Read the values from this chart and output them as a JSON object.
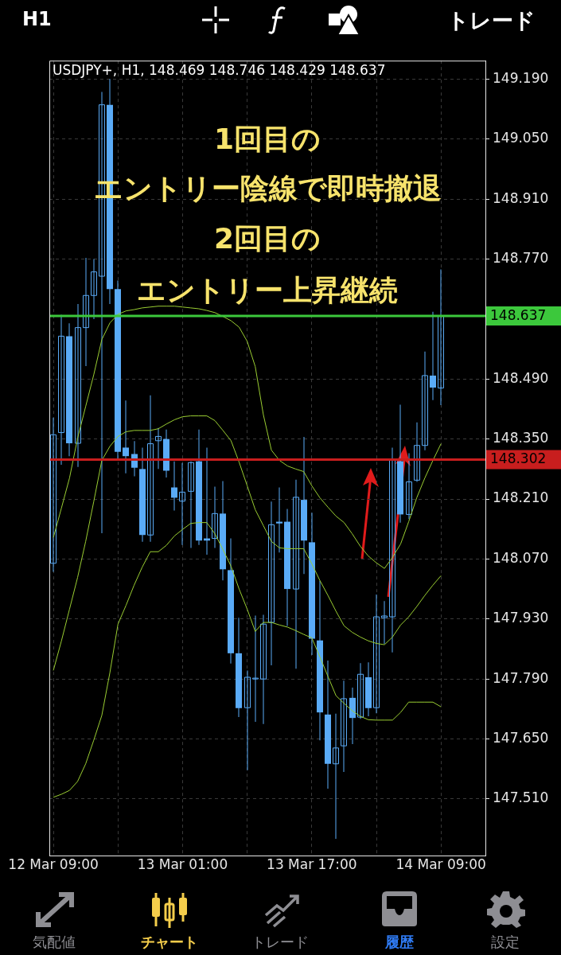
{
  "chart_data": {
    "type": "candlestick",
    "title": "USDJPY+, H1, 148.469 148.746 148.429 148.637",
    "categories": [
      "12 Mar 09:00",
      null,
      null,
      null,
      null,
      null,
      null,
      null,
      null,
      null,
      null,
      null,
      null,
      null,
      null,
      null,
      "13 Mar 01:00",
      null,
      null,
      null,
      null,
      null,
      null,
      null,
      null,
      null,
      null,
      null,
      null,
      null,
      null,
      null,
      "13 Mar 17:00",
      null,
      null,
      null,
      null,
      null,
      null,
      null,
      null,
      null,
      null,
      null,
      null,
      null,
      null,
      null,
      "14 Mar 09:00",
      null,
      null,
      null,
      null,
      null
    ],
    "series": [
      {
        "type": "line",
        "color": "#9acd32",
        "values": [
          148.12,
          148.189,
          148.259,
          148.352,
          148.426,
          148.5,
          148.582,
          148.621,
          148.641,
          148.649,
          148.652,
          148.656,
          148.658,
          148.66,
          148.66,
          148.66,
          148.658,
          148.656,
          148.654,
          148.65,
          148.645,
          148.636,
          148.626,
          148.611,
          148.578,
          148.519,
          148.407,
          148.324,
          148.3,
          148.287,
          148.28,
          148.274,
          148.241,
          148.213,
          148.191,
          148.17,
          148.155,
          148.129,
          148.1,
          148.077,
          148.061,
          148.048,
          148.074,
          148.105,
          148.157,
          148.213,
          148.259,
          148.3,
          148.339,
          null,
          null,
          null,
          null,
          null
        ]
      },
      {
        "type": "line",
        "color": "#9acd32",
        "values": [
          147.81,
          147.879,
          147.953,
          148.027,
          148.111,
          148.204,
          148.3,
          148.333,
          148.356,
          148.367,
          148.37,
          148.37,
          148.37,
          148.374,
          148.385,
          148.395,
          148.402,
          148.404,
          148.404,
          148.404,
          148.393,
          148.37,
          148.346,
          148.296,
          148.241,
          148.185,
          148.148,
          148.111,
          148.096,
          148.094,
          148.094,
          148.094,
          148.059,
          148.02,
          147.985,
          147.948,
          147.914,
          147.899,
          147.888,
          147.879,
          147.873,
          147.87,
          147.888,
          147.916,
          147.935,
          147.959,
          147.985,
          148.009,
          148.031,
          null,
          null,
          null,
          null,
          null
        ]
      },
      {
        "type": "line",
        "color": "#9acd32",
        "values": [
          147.514,
          147.521,
          147.53,
          147.551,
          147.592,
          147.647,
          147.705,
          147.805,
          147.918,
          147.962,
          148.009,
          148.051,
          148.087,
          148.087,
          148.102,
          148.124,
          148.139,
          148.153,
          148.155,
          148.155,
          148.129,
          148.092,
          148.053,
          148.0,
          147.953,
          147.901,
          147.922,
          147.922,
          147.916,
          147.911,
          147.903,
          147.894,
          147.886,
          147.842,
          147.796,
          147.751,
          147.733,
          147.716,
          147.703,
          147.695,
          147.694,
          147.694,
          147.694,
          147.712,
          147.736,
          147.736,
          147.736,
          147.736,
          147.725,
          null,
          null,
          null,
          null,
          null
        ]
      },
      {
        "type": "candlestick",
        "color": "#5aabf7",
        "ohlc": [
          [
            148.06,
            148.4,
            148.04,
            148.36
          ],
          [
            148.365,
            148.64,
            148.29,
            148.59
          ],
          [
            148.59,
            148.62,
            148.31,
            148.34
          ],
          [
            148.34,
            148.665,
            148.285,
            148.61
          ],
          [
            148.61,
            148.773,
            148.52,
            148.685
          ],
          [
            148.685,
            148.77,
            148.63,
            148.74
          ],
          [
            148.73,
            149.16,
            148.13,
            149.13
          ],
          [
            149.13,
            149.19,
            148.665,
            148.7
          ],
          [
            148.7,
            148.72,
            148.3,
            148.32
          ],
          [
            148.33,
            148.44,
            148.27,
            148.31
          ],
          [
            148.315,
            148.345,
            148.263,
            148.283
          ],
          [
            148.28,
            148.33,
            148.11,
            148.126
          ],
          [
            148.126,
            148.452,
            148.11,
            148.339
          ],
          [
            148.346,
            148.376,
            148.28,
            148.356
          ],
          [
            148.35,
            148.372,
            148.26,
            148.276
          ],
          [
            148.237,
            148.298,
            148.183,
            148.213
          ],
          [
            148.205,
            148.294,
            148.103,
            148.226
          ],
          [
            148.228,
            148.298,
            148.096,
            148.295
          ],
          [
            148.298,
            148.372,
            148.103,
            148.113
          ],
          [
            148.118,
            148.33,
            148.08,
            148.113
          ],
          [
            148.118,
            148.239,
            148.096,
            148.176
          ],
          [
            148.176,
            148.252,
            148.02,
            148.046
          ],
          [
            148.044,
            148.118,
            147.826,
            147.85
          ],
          [
            147.85,
            147.933,
            147.701,
            147.722
          ],
          [
            147.723,
            147.81,
            147.577,
            147.794
          ],
          [
            147.79,
            147.938,
            147.69,
            147.792
          ],
          [
            147.79,
            147.94,
            147.685,
            147.918
          ],
          [
            147.922,
            148.204,
            147.822,
            148.15
          ],
          [
            148.157,
            148.237,
            148.085,
            148.153
          ],
          [
            148.157,
            148.187,
            147.914,
            148.0
          ],
          [
            148.0,
            148.255,
            147.814,
            148.214
          ],
          [
            148.208,
            148.355,
            148.035,
            148.113
          ],
          [
            148.109,
            148.178,
            147.846,
            147.884
          ],
          [
            147.88,
            148.019,
            147.647,
            147.712
          ],
          [
            147.707,
            147.833,
            147.534,
            147.592
          ],
          [
            147.592,
            147.709,
            147.417,
            147.629
          ],
          [
            147.634,
            147.786,
            147.573,
            147.744
          ],
          [
            147.746,
            147.77,
            147.638,
            147.699
          ],
          [
            147.701,
            147.827,
            147.697,
            147.801
          ],
          [
            147.794,
            147.829,
            147.703,
            147.722
          ],
          [
            147.723,
            147.987,
            147.71,
            147.935
          ],
          [
            147.933,
            147.972,
            147.872,
            147.937
          ],
          [
            147.935,
            148.33,
            147.852,
            148.302
          ],
          [
            148.298,
            148.43,
            148.155,
            148.174
          ],
          [
            148.174,
            148.317,
            148.163,
            148.25
          ],
          [
            148.254,
            148.389,
            148.25,
            148.335
          ],
          [
            148.335,
            148.554,
            148.324,
            148.498
          ],
          [
            148.498,
            148.647,
            148.441,
            148.47
          ],
          [
            148.469,
            148.746,
            148.429,
            148.637
          ],
          null,
          null,
          null,
          null,
          null
        ]
      }
    ],
    "ylim": [
      147.378,
      149.233
    ],
    "yticks": [
      {
        "value": 147.51,
        "label": "147.510"
      },
      {
        "value": 147.65,
        "label": "147.650"
      },
      {
        "value": 147.79,
        "label": "147.790"
      },
      {
        "value": 147.93,
        "label": "147.930"
      },
      {
        "value": 148.07,
        "label": "148.070"
      },
      {
        "value": 148.21,
        "label": "148.210"
      },
      {
        "value": 148.35,
        "label": "148.350"
      },
      {
        "value": 148.49,
        "label": "148.490"
      },
      {
        "value": 148.77,
        "label": "148.770"
      },
      {
        "value": 148.91,
        "label": "148.910"
      },
      {
        "value": 149.05,
        "label": "149.050"
      },
      {
        "value": 149.19,
        "label": "149.190"
      }
    ],
    "grid": true,
    "ref_lines": [
      {
        "axis": "y",
        "value": 148.637,
        "label": "148.637",
        "color": "#3cc83c"
      },
      {
        "axis": "y",
        "value": 148.302,
        "label": "148.302",
        "color": "#c81e1e"
      }
    ],
    "annotations": [
      "1回目の",
      "エントリー陰線で即時撤退",
      "2回目の",
      "エントリー上昇継続",
      "H1",
      "トレード",
      "気配値",
      "チャート",
      "トレード",
      "履歴",
      "設定"
    ]
  }
}
